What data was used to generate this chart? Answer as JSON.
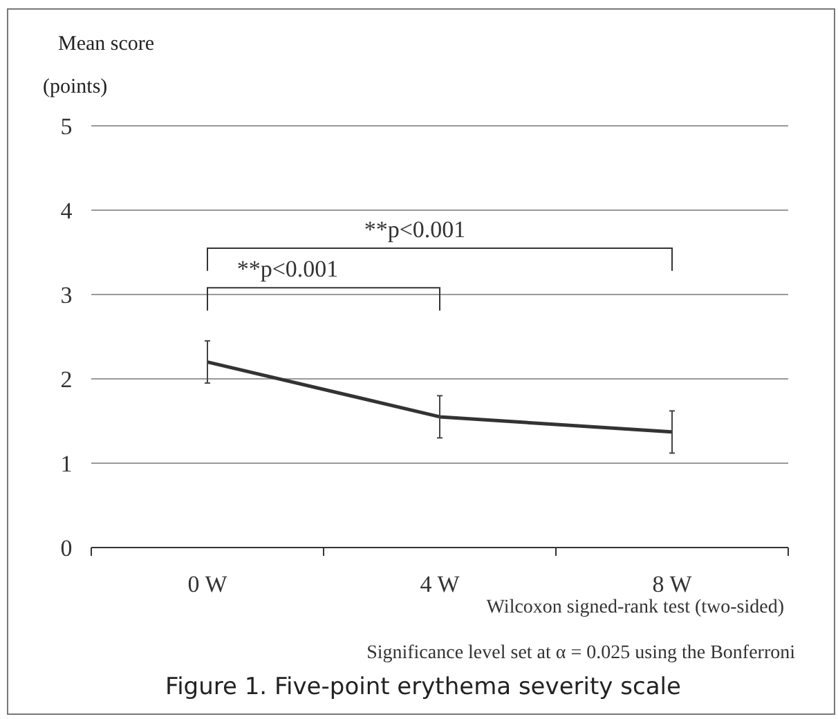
{
  "chart_data": {
    "type": "line",
    "title": "Figure 1.  Five-point erythema severity scale",
    "ylabel": "Mean score (points)",
    "categories": [
      "0 W",
      "4 W",
      "8 W"
    ],
    "series": [
      {
        "color": "#333333",
        "values": [
          2.2,
          1.55,
          1.37
        ],
        "errors": [
          0.25,
          0.25,
          0.25
        ]
      }
    ],
    "ylim": [
      0,
      5
    ],
    "yticks": [
      0,
      1,
      2,
      3,
      4,
      5
    ],
    "grid": "y",
    "marker": "none",
    "line_style": "solid",
    "annotations": [
      "**p<0.001",
      "**p<0.001",
      "Wilcoxon signed-rank test (two-sided)",
      "Significance level set at α = 0.025 using the Bonferroni"
    ]
  }
}
